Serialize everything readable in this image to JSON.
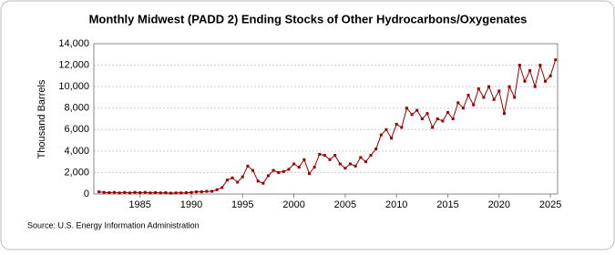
{
  "chart_data": {
    "type": "line",
    "title": "Monthly Midwest (PADD 2) Ending Stocks of Other Hydrocarbons/Oxygenates",
    "y_label": "Thousand Barrels",
    "source": "Source: U.S. Energy Information Administration",
    "color": "#990000",
    "grid": true,
    "x": [
      1981,
      1981.5,
      1982,
      1982.5,
      1983,
      1983.5,
      1984,
      1984.5,
      1985,
      1985.5,
      1986,
      1986.5,
      1987,
      1987.5,
      1988,
      1988.5,
      1989,
      1989.5,
      1990,
      1990.5,
      1991,
      1991.5,
      1992,
      1992.5,
      1993,
      1993.5,
      1994,
      1994.5,
      1995,
      1995.5,
      1996,
      1996.5,
      1997,
      1997.5,
      1998,
      1998.5,
      1999,
      1999.5,
      2000,
      2000.5,
      2001,
      2001.5,
      2002,
      2002.5,
      2003,
      2003.5,
      2004,
      2004.5,
      2005,
      2005.5,
      2006,
      2006.5,
      2007,
      2007.5,
      2008,
      2008.5,
      2009,
      2009.5,
      2010,
      2010.5,
      2011,
      2011.5,
      2012,
      2012.5,
      2013,
      2013.5,
      2014,
      2014.5,
      2015,
      2015.5,
      2016,
      2016.5,
      2017,
      2017.5,
      2018,
      2018.5,
      2019,
      2019.5,
      2020,
      2020.5,
      2021,
      2021.5,
      2022,
      2022.5,
      2023,
      2023.5,
      2024,
      2024.5,
      2025,
      2025.5
    ],
    "values": [
      200,
      150,
      120,
      150,
      100,
      150,
      100,
      150,
      120,
      150,
      100,
      130,
      100,
      120,
      80,
      100,
      100,
      120,
      150,
      200,
      200,
      250,
      250,
      400,
      600,
      1300,
      1500,
      1100,
      1600,
      2600,
      2200,
      1200,
      1000,
      1700,
      2200,
      2000,
      2100,
      2300,
      2800,
      2500,
      3200,
      1900,
      2500,
      3700,
      3600,
      3200,
      3600,
      2800,
      2400,
      2800,
      2600,
      3400,
      3000,
      3600,
      4200,
      5500,
      6000,
      5200,
      6500,
      6200,
      8000,
      7400,
      7800,
      7000,
      7500,
      6200,
      7000,
      6800,
      7600,
      7000,
      8500,
      8000,
      9200,
      8300,
      9800,
      9000,
      10000,
      8800,
      9600,
      7500,
      10000,
      9000,
      12000,
      10500,
      11500,
      10000,
      12000,
      10500,
      11000,
      12500
    ],
    "xlim": [
      1980.5,
      2025.7
    ],
    "xticks": [
      1985,
      1990,
      1995,
      2000,
      2005,
      2010,
      2015,
      2020,
      2025
    ],
    "ylim": [
      0,
      14000
    ],
    "yticks": [
      0,
      {
        "value": 2000,
        "label": "2,000"
      },
      {
        "value": 4000,
        "label": "4,000"
      },
      {
        "value": 6000,
        "label": "6,000"
      },
      {
        "value": 8000,
        "label": "8,000"
      },
      {
        "value": 10000,
        "label": "10,000"
      },
      {
        "value": 12000,
        "label": "12,000"
      },
      {
        "value": 14000,
        "label": "14,000"
      }
    ]
  }
}
